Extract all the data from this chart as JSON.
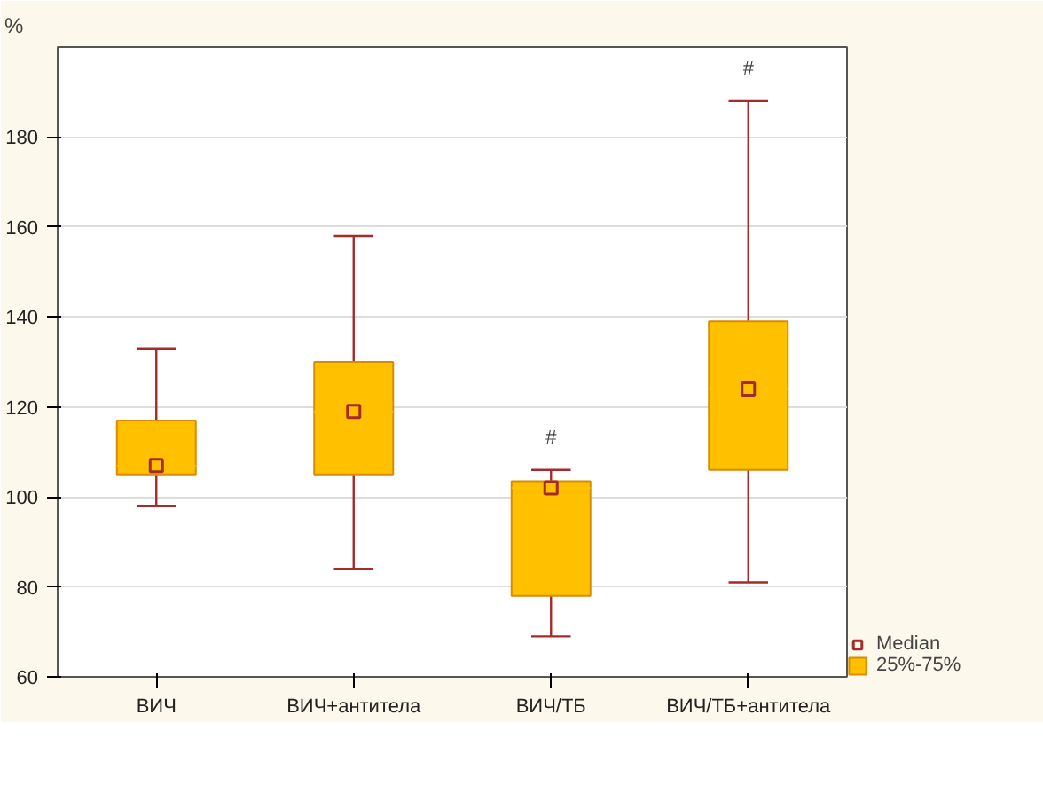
{
  "chart_data": {
    "type": "box",
    "ylabel": "%",
    "categories": [
      "ВИЧ",
      "ВИЧ+антитела",
      "ВИЧ/ТБ",
      "ВИЧ/ТБ+антитела"
    ],
    "series": [
      {
        "name": "25%-75%",
        "color": "#ffc000",
        "boxes": [
          {
            "low": 98,
            "q1": 105,
            "median": 107,
            "q3": 117,
            "high": 133
          },
          {
            "low": 84,
            "q1": 105,
            "median": 119,
            "q3": 130,
            "high": 158
          },
          {
            "low": 69,
            "q1": 78,
            "median": 102,
            "q3": 103.5,
            "high": 106
          },
          {
            "low": 81,
            "q1": 106,
            "median": 124,
            "q3": 139,
            "high": 188
          }
        ]
      },
      {
        "name": "Median",
        "type": "scatter",
        "marker": "square",
        "color": "#a52a2a",
        "x": [
          "ВИЧ",
          "ВИЧ+антитела",
          "ВИЧ/ТБ",
          "ВИЧ/ТБ+антитела"
        ],
        "values": [
          107,
          119,
          102,
          124
        ]
      }
    ],
    "ylim": [
      60,
      200
    ],
    "yticks": [
      60,
      80,
      100,
      120,
      140,
      160,
      180
    ],
    "grid": "y",
    "legend": "bottom right",
    "annotations": [
      {
        "text": "#",
        "x": "ВИЧ/ТБ",
        "y": 106
      },
      {
        "text": "#",
        "x": "ВИЧ/ТБ+антитела",
        "y": 188
      }
    ]
  }
}
